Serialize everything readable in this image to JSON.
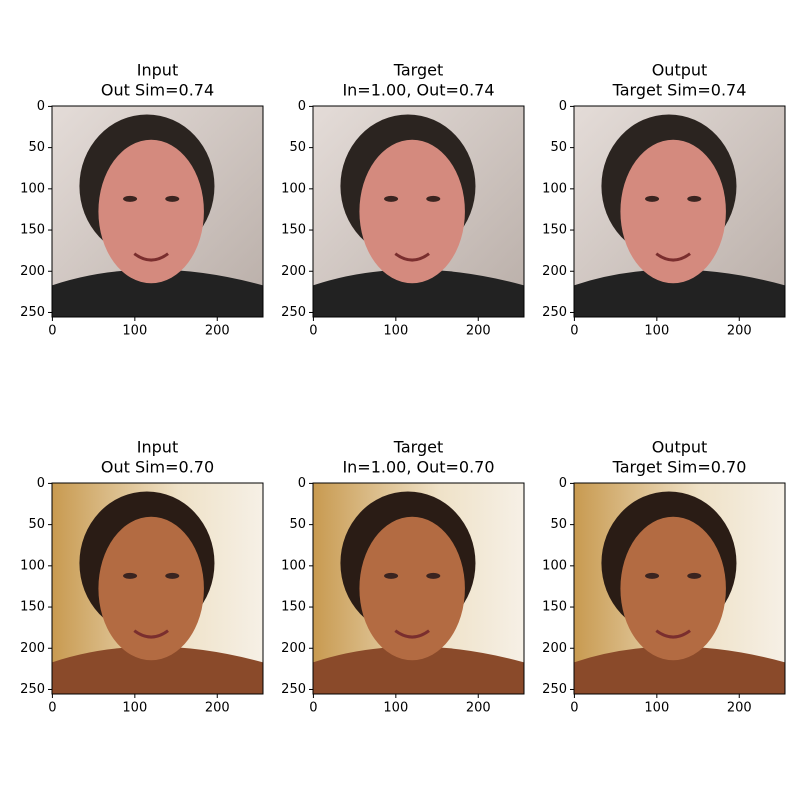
{
  "chart_data": [
    {
      "type": "image",
      "title": [
        "Input",
        "Out Sim=0.74"
      ],
      "xlim": [
        -0.5,
        255.5
      ],
      "ylim": [
        255.5,
        -0.5
      ],
      "xticks": [
        0,
        100,
        200
      ],
      "yticks": [
        0,
        50,
        100,
        150,
        200,
        250
      ]
    },
    {
      "type": "image",
      "title": [
        "Target",
        "In=1.00, Out=0.74"
      ],
      "xlim": [
        -0.5,
        255.5
      ],
      "ylim": [
        255.5,
        -0.5
      ],
      "xticks": [
        0,
        100,
        200
      ],
      "yticks": [
        0,
        50,
        100,
        150,
        200,
        250
      ]
    },
    {
      "type": "image",
      "title": [
        "Output",
        "Target Sim=0.74"
      ],
      "xlim": [
        -0.5,
        255.5
      ],
      "ylim": [
        255.5,
        -0.5
      ],
      "xticks": [
        0,
        100,
        200
      ],
      "yticks": [
        0,
        50,
        100,
        150,
        200,
        250
      ]
    },
    {
      "type": "image",
      "title": [
        "Input",
        "Out Sim=0.70"
      ],
      "xlim": [
        -0.5,
        255.5
      ],
      "ylim": [
        255.5,
        -0.5
      ],
      "xticks": [
        0,
        100,
        200
      ],
      "yticks": [
        0,
        50,
        100,
        150,
        200,
        250
      ]
    },
    {
      "type": "image",
      "title": [
        "Target",
        "In=1.00, Out=0.70"
      ],
      "xlim": [
        -0.5,
        255.5
      ],
      "ylim": [
        255.5,
        -0.5
      ],
      "xticks": [
        0,
        100,
        200
      ],
      "yticks": [
        0,
        50,
        100,
        150,
        200,
        250
      ]
    },
    {
      "type": "image",
      "title": [
        "Output",
        "Target Sim=0.70"
      ],
      "xlim": [
        -0.5,
        255.5
      ],
      "ylim": [
        255.5,
        -0.5
      ],
      "xticks": [
        0,
        100,
        200
      ],
      "yticks": [
        0,
        50,
        100,
        150,
        200,
        250
      ]
    }
  ]
}
